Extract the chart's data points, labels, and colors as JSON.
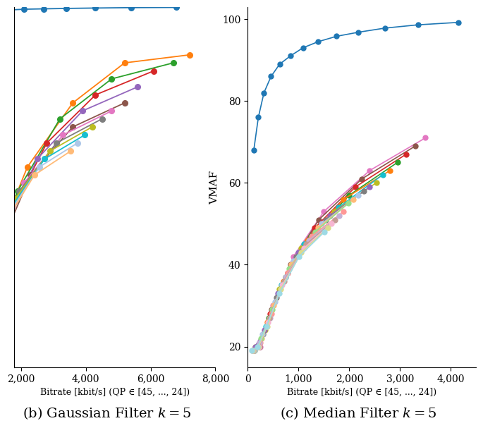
{
  "left_xlim": [
    1800,
    8000
  ],
  "left_xticks": [
    2000,
    4000,
    6000,
    8000
  ],
  "left_xticklabels": [
    "2,000",
    "4,000",
    "6,000",
    "8,000"
  ],
  "left_xlabel": "Bitrate [kbit/s] (QP ∈ [45, ..., 24])",
  "left_ylim": [
    55,
    100
  ],
  "left_curves": [
    {
      "color": "#1f77b4",
      "x": [
        300,
        600,
        900,
        1200,
        1600,
        2100,
        2700,
        3400,
        4300,
        5400,
        6800
      ],
      "y": [
        99.0,
        99.2,
        99.35,
        99.5,
        99.6,
        99.7,
        99.75,
        99.8,
        99.85,
        99.9,
        99.93
      ]
    },
    {
      "color": "#ff7f0e",
      "x": [
        1200,
        2200,
        3600,
        5200,
        7200
      ],
      "y": [
        70,
        80,
        88,
        93,
        94
      ]
    },
    {
      "color": "#2ca02c",
      "x": [
        1000,
        1900,
        3200,
        4800,
        6700
      ],
      "y": [
        67,
        77,
        86,
        91,
        93
      ]
    },
    {
      "color": "#d62728",
      "x": [
        850,
        1650,
        2800,
        4300,
        6100
      ],
      "y": [
        64,
        74,
        83,
        89,
        92
      ]
    },
    {
      "color": "#9467bd",
      "x": [
        750,
        1480,
        2500,
        3900,
        5600
      ],
      "y": [
        62,
        72,
        81,
        87,
        90
      ]
    },
    {
      "color": "#8c564b",
      "x": [
        670,
        1350,
        2300,
        3600,
        5200
      ],
      "y": [
        60,
        70,
        79,
        85,
        88
      ]
    },
    {
      "color": "#e377c2",
      "x": [
        600,
        1230,
        2100,
        3300,
        4800
      ],
      "y": [
        59,
        69,
        78,
        84,
        87
      ]
    },
    {
      "color": "#7f7f7f",
      "x": [
        550,
        1130,
        1950,
        3100,
        4500
      ],
      "y": [
        58,
        68,
        77,
        83,
        86
      ]
    },
    {
      "color": "#bcbd22",
      "x": [
        500,
        1040,
        1820,
        2900,
        4200
      ],
      "y": [
        57,
        67,
        76,
        82,
        85
      ]
    },
    {
      "color": "#17becf",
      "x": [
        460,
        970,
        1710,
        2730,
        3970
      ],
      "y": [
        56,
        66,
        75,
        81,
        84
      ]
    },
    {
      "color": "#aec7e8",
      "x": [
        420,
        900,
        1600,
        2570,
        3750
      ],
      "y": [
        55,
        65,
        74,
        80,
        83
      ]
    },
    {
      "color": "#ffbb78",
      "x": [
        380,
        840,
        1500,
        2420,
        3540
      ],
      "y": [
        54,
        64,
        73,
        79,
        82
      ]
    }
  ],
  "right_xlim": [
    0,
    4500
  ],
  "right_xticks": [
    0,
    1000,
    2000,
    3000,
    4000
  ],
  "right_xticklabels": [
    "0",
    "1,000",
    "2,000",
    "3,000",
    "4,000"
  ],
  "right_xlabel": "Bitrate [kbit/s] (QP ∈ [45, ..., 24])",
  "right_ylim": [
    15,
    103
  ],
  "right_yticks": [
    20,
    40,
    60,
    80,
    100
  ],
  "right_ylabel": "VMAF",
  "right_curves": [
    {
      "color": "#1f77b4",
      "x": [
        120,
        210,
        320,
        460,
        630,
        840,
        1090,
        1390,
        1750,
        2180,
        2700,
        3350,
        4150
      ],
      "y": [
        68,
        76,
        82,
        86,
        89,
        91,
        93,
        94.5,
        95.8,
        96.8,
        97.8,
        98.6,
        99.2
      ]
    },
    {
      "color": "#e377c2",
      "x": [
        250,
        500,
        900,
        1500,
        2400,
        3500
      ],
      "y": [
        20,
        30,
        42,
        53,
        63,
        71
      ]
    },
    {
      "color": "#8c564b",
      "x": [
        230,
        470,
        840,
        1400,
        2250,
        3300
      ],
      "y": [
        20,
        29,
        40,
        51,
        61,
        69
      ]
    },
    {
      "color": "#d62728",
      "x": [
        210,
        440,
        790,
        1320,
        2120,
        3120
      ],
      "y": [
        20,
        28,
        38,
        49,
        59,
        67
      ]
    },
    {
      "color": "#2ca02c",
      "x": [
        190,
        410,
        740,
        1240,
        2000,
        2950
      ],
      "y": [
        20,
        27,
        37,
        47,
        57,
        65
      ]
    },
    {
      "color": "#ff7f0e",
      "x": [
        175,
        385,
        700,
        1170,
        1890,
        2800
      ],
      "y": [
        20,
        26,
        36,
        46,
        56,
        63
      ]
    },
    {
      "color": "#17becf",
      "x": [
        165,
        363,
        660,
        1110,
        1790,
        2660
      ],
      "y": [
        20,
        25,
        35,
        45,
        54,
        62
      ]
    },
    {
      "color": "#bcbd22",
      "x": [
        155,
        343,
        625,
        1055,
        1700,
        2530
      ],
      "y": [
        20,
        24,
        34,
        44,
        53,
        60
      ]
    },
    {
      "color": "#9467bd",
      "x": [
        145,
        325,
        592,
        1000,
        1615,
        2400
      ],
      "y": [
        20,
        24,
        33,
        43,
        52,
        59
      ]
    },
    {
      "color": "#7f7f7f",
      "x": [
        137,
        308,
        562,
        950,
        1535,
        2285
      ],
      "y": [
        19,
        23,
        32,
        42,
        51,
        58
      ]
    },
    {
      "color": "#aec7e8",
      "x": [
        130,
        292,
        535,
        903,
        1460,
        2175
      ],
      "y": [
        19,
        23,
        31,
        41,
        50,
        57
      ]
    },
    {
      "color": "#ffbb78",
      "x": [
        123,
        277,
        510,
        860,
        1390,
        2075
      ],
      "y": [
        19,
        22,
        30,
        40,
        49,
        56
      ]
    },
    {
      "color": "#98df8a",
      "x": [
        117,
        264,
        487,
        820,
        1325,
        1980
      ],
      "y": [
        19,
        22,
        29,
        39,
        48,
        55
      ]
    },
    {
      "color": "#ff9896",
      "x": [
        111,
        251,
        464,
        782,
        1262,
        1890
      ],
      "y": [
        19,
        21,
        28,
        38,
        47,
        53
      ]
    },
    {
      "color": "#c5b0d5",
      "x": [
        105,
        238,
        443,
        746,
        1205,
        1805
      ],
      "y": [
        19,
        21,
        27,
        37,
        46,
        52
      ]
    },
    {
      "color": "#c49c94",
      "x": [
        100,
        227,
        423,
        713,
        1152,
        1724
      ],
      "y": [
        19,
        20,
        27,
        36,
        45,
        51
      ]
    },
    {
      "color": "#f7b6d2",
      "x": [
        95,
        216,
        405,
        681,
        1103,
        1648
      ],
      "y": [
        19,
        20,
        26,
        35,
        44,
        50
      ]
    },
    {
      "color": "#dbdb8d",
      "x": [
        90,
        206,
        387,
        651,
        1056,
        1576
      ],
      "y": [
        19,
        20,
        25,
        34,
        43,
        49
      ]
    },
    {
      "color": "#9edae5",
      "x": [
        85,
        196,
        370,
        623,
        1012,
        1508
      ],
      "y": [
        19,
        20,
        25,
        33,
        42,
        48
      ]
    }
  ],
  "subtitle_left": "(b) Gaussian Filter $k = 5$",
  "subtitle_right": "(c) Median Filter $k = 5$"
}
